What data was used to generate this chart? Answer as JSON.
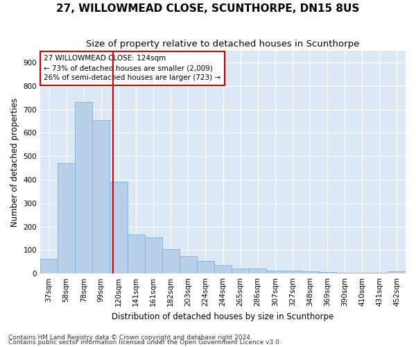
{
  "title": "27, WILLOWMEAD CLOSE, SCUNTHORPE, DN15 8US",
  "subtitle": "Size of property relative to detached houses in Scunthorpe",
  "xlabel": "Distribution of detached houses by size in Scunthorpe",
  "ylabel": "Number of detached properties",
  "categories": [
    "37sqm",
    "58sqm",
    "78sqm",
    "99sqm",
    "120sqm",
    "141sqm",
    "161sqm",
    "182sqm",
    "203sqm",
    "224sqm",
    "244sqm",
    "265sqm",
    "286sqm",
    "307sqm",
    "327sqm",
    "348sqm",
    "369sqm",
    "390sqm",
    "410sqm",
    "431sqm",
    "452sqm"
  ],
  "values": [
    62,
    470,
    730,
    655,
    390,
    165,
    155,
    105,
    75,
    55,
    35,
    20,
    20,
    12,
    12,
    8,
    5,
    3,
    3,
    3,
    8
  ],
  "bar_color": "#b8d0ea",
  "bar_edge_color": "#7aafd4",
  "vline_color": "#cc0000",
  "annotation_text": "27 WILLOWMEAD CLOSE: 124sqm\n← 73% of detached houses are smaller (2,009)\n26% of semi-detached houses are larger (723) →",
  "annotation_box_color": "#ffffff",
  "annotation_box_edge_color": "#cc0000",
  "ylim": [
    0,
    950
  ],
  "yticks": [
    0,
    100,
    200,
    300,
    400,
    500,
    600,
    700,
    800,
    900
  ],
  "background_color": "#dce8f5",
  "footer1": "Contains HM Land Registry data © Crown copyright and database right 2024.",
  "footer2": "Contains public sector information licensed under the Open Government Licence v3.0.",
  "title_fontsize": 11,
  "subtitle_fontsize": 9.5,
  "axis_label_fontsize": 8.5,
  "tick_fontsize": 7.5,
  "annotation_fontsize": 7.5,
  "footer_fontsize": 6.5
}
